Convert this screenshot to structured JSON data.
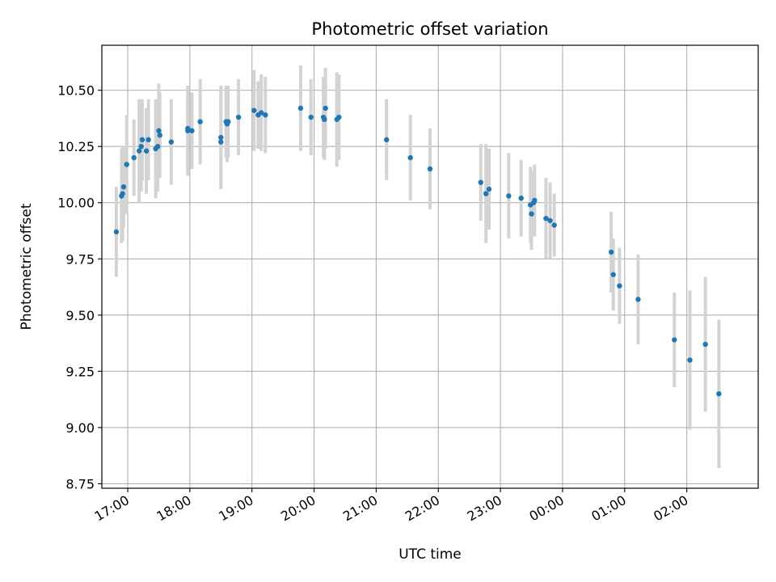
{
  "chart_data": {
    "type": "scatter",
    "title": "Photometric offset variation",
    "xlabel": "UTC time",
    "ylabel": "Photometric offset",
    "x_ticks": [
      "17:00",
      "18:00",
      "19:00",
      "20:00",
      "21:00",
      "22:00",
      "23:00",
      "00:00",
      "01:00",
      "02:00"
    ],
    "y_ticks": [
      "8.75",
      "9.00",
      "9.25",
      "9.50",
      "9.75",
      "10.00",
      "10.25",
      "10.50"
    ],
    "grid": true,
    "x_unit": "UTC time (hours)",
    "xlim": [
      "16:35",
      "27:09"
    ],
    "ylim": [
      8.73,
      10.7
    ],
    "colors": {
      "point": "#1f77b4",
      "errorbar": "#d3d3d3",
      "grid": "#b0b0b0"
    },
    "series": [
      {
        "x": [
          "16:49",
          "16:54",
          "16:55",
          "16:56",
          "16:59",
          "17:06",
          "17:11",
          "17:13",
          "17:14",
          "17:18",
          "17:20",
          "17:27",
          "17:29",
          "17:30",
          "17:31",
          "17:42",
          "17:58",
          "17:58",
          "18:02",
          "18:10",
          "18:30",
          "18:30",
          "18:35",
          "18:36",
          "18:37",
          "18:47",
          "19:02",
          "19:06",
          "19:09",
          "19:13",
          "19:47",
          "19:57",
          "20:09",
          "20:10",
          "20:11",
          "20:22",
          "20:24",
          "21:10",
          "21:33",
          "21:52",
          "22:41",
          "22:46",
          "22:49",
          "23:08",
          "23:20",
          "23:29",
          "23:30",
          "23:32",
          "23:33",
          "23:44",
          "23:48",
          "23:52",
          "24:47",
          "24:49",
          "24:55",
          "25:13",
          "25:48",
          "26:03",
          "26:18",
          "26:31"
        ],
        "y": [
          9.87,
          10.03,
          10.04,
          10.07,
          10.17,
          10.2,
          10.23,
          10.25,
          10.28,
          10.23,
          10.28,
          10.24,
          10.25,
          10.32,
          10.3,
          10.27,
          10.33,
          10.32,
          10.32,
          10.36,
          10.27,
          10.29,
          10.36,
          10.35,
          10.36,
          10.38,
          10.41,
          10.39,
          10.4,
          10.39,
          10.42,
          10.38,
          10.38,
          10.37,
          10.42,
          10.37,
          10.38,
          10.28,
          10.2,
          10.15,
          10.09,
          10.04,
          10.06,
          10.03,
          10.02,
          9.99,
          9.95,
          10.0,
          10.01,
          9.93,
          9.92,
          9.9,
          9.78,
          9.68,
          9.63,
          9.57,
          9.39,
          9.3,
          9.37,
          9.15
        ],
        "err": [
          0.2,
          0.21,
          0.21,
          0.18,
          0.22,
          0.17,
          0.23,
          0.2,
          0.18,
          0.19,
          0.18,
          0.22,
          0.2,
          0.21,
          0.19,
          0.19,
          0.19,
          0.2,
          0.17,
          0.19,
          0.21,
          0.23,
          0.16,
          0.17,
          0.16,
          0.17,
          0.18,
          0.15,
          0.17,
          0.17,
          0.19,
          0.17,
          0.18,
          0.18,
          0.18,
          0.21,
          0.19,
          0.18,
          0.19,
          0.18,
          0.17,
          0.22,
          0.18,
          0.19,
          0.17,
          0.17,
          0.16,
          0.14,
          0.16,
          0.18,
          0.17,
          0.14,
          0.18,
          0.16,
          0.17,
          0.2,
          0.21,
          0.31,
          0.3,
          0.33
        ]
      }
    ]
  }
}
